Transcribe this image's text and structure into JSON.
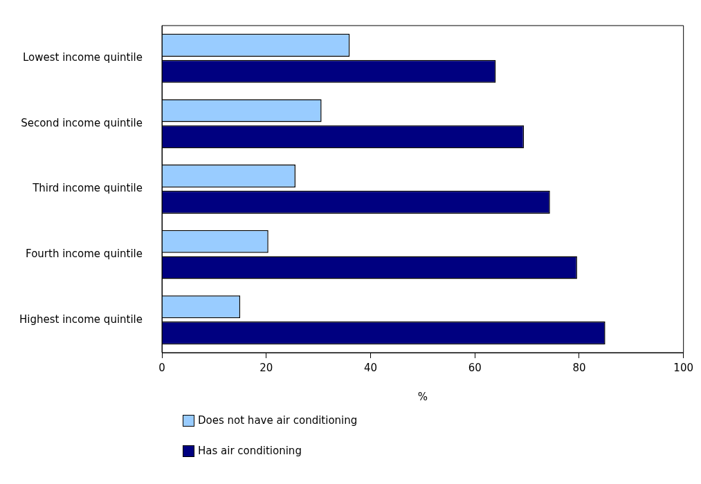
{
  "chart_data": {
    "type": "bar",
    "orientation": "horizontal",
    "xlabel": "%",
    "legend": "bottom",
    "categories": [
      "Lowest income quintile",
      "Second income quintile",
      "Third income quintile",
      "Fourth income quintile",
      "Highest income quintile"
    ],
    "series": [
      {
        "name": "Does not have air conditioning",
        "color": "#99ccff",
        "values": [
          36,
          30.6,
          25.6,
          20.4,
          15
        ]
      },
      {
        "name": "Has air conditioning",
        "color": "#000080",
        "values": [
          64,
          69.4,
          74.4,
          79.6,
          85
        ]
      }
    ],
    "xlim": [
      0,
      100
    ],
    "xticks": [
      0,
      20,
      40,
      60,
      80,
      100
    ]
  }
}
